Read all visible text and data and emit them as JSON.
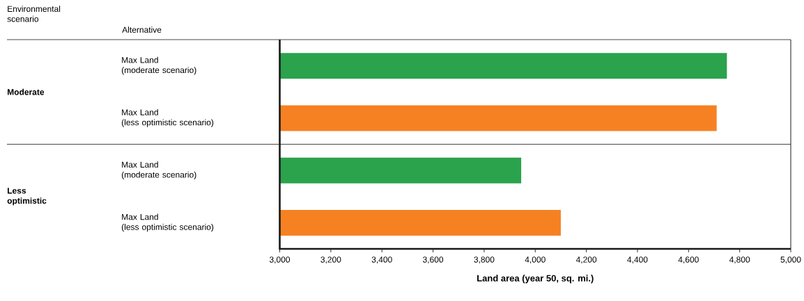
{
  "chart_data": {
    "type": "bar",
    "orientation": "horizontal",
    "xlabel": "Land area (year 50, sq. mi.)",
    "categories": [
      "Max Land (moderate scenario)",
      "Max Land (less optimistic scenario)",
      "Max Land (moderate scenario)",
      "Max Land (less optimistic scenario)"
    ],
    "values": [
      4750,
      4710,
      3945,
      4100
    ],
    "colors": [
      "#2ba24c",
      "#f68122",
      "#2ba24c",
      "#f68122"
    ],
    "xlim": [
      3000,
      5000
    ],
    "xticks": [
      {
        "value": 3000,
        "label": "3,000"
      },
      {
        "value": 3200,
        "label": "3,200"
      },
      {
        "value": 3400,
        "label": "3,400"
      },
      {
        "value": 3600,
        "label": "3,600"
      },
      {
        "value": 3800,
        "label": "3,800"
      },
      {
        "value": 4000,
        "label": "4,000"
      },
      {
        "value": 4200,
        "label": "4,200"
      },
      {
        "value": 4400,
        "label": "4,400"
      },
      {
        "value": 4600,
        "label": "4,600"
      },
      {
        "value": 4800,
        "label": "4,800"
      },
      {
        "value": 5000,
        "label": "5,000"
      }
    ],
    "annotations": [
      "Environmental scenario",
      "Alternative",
      "Moderate",
      "Less optimistic"
    ]
  }
}
